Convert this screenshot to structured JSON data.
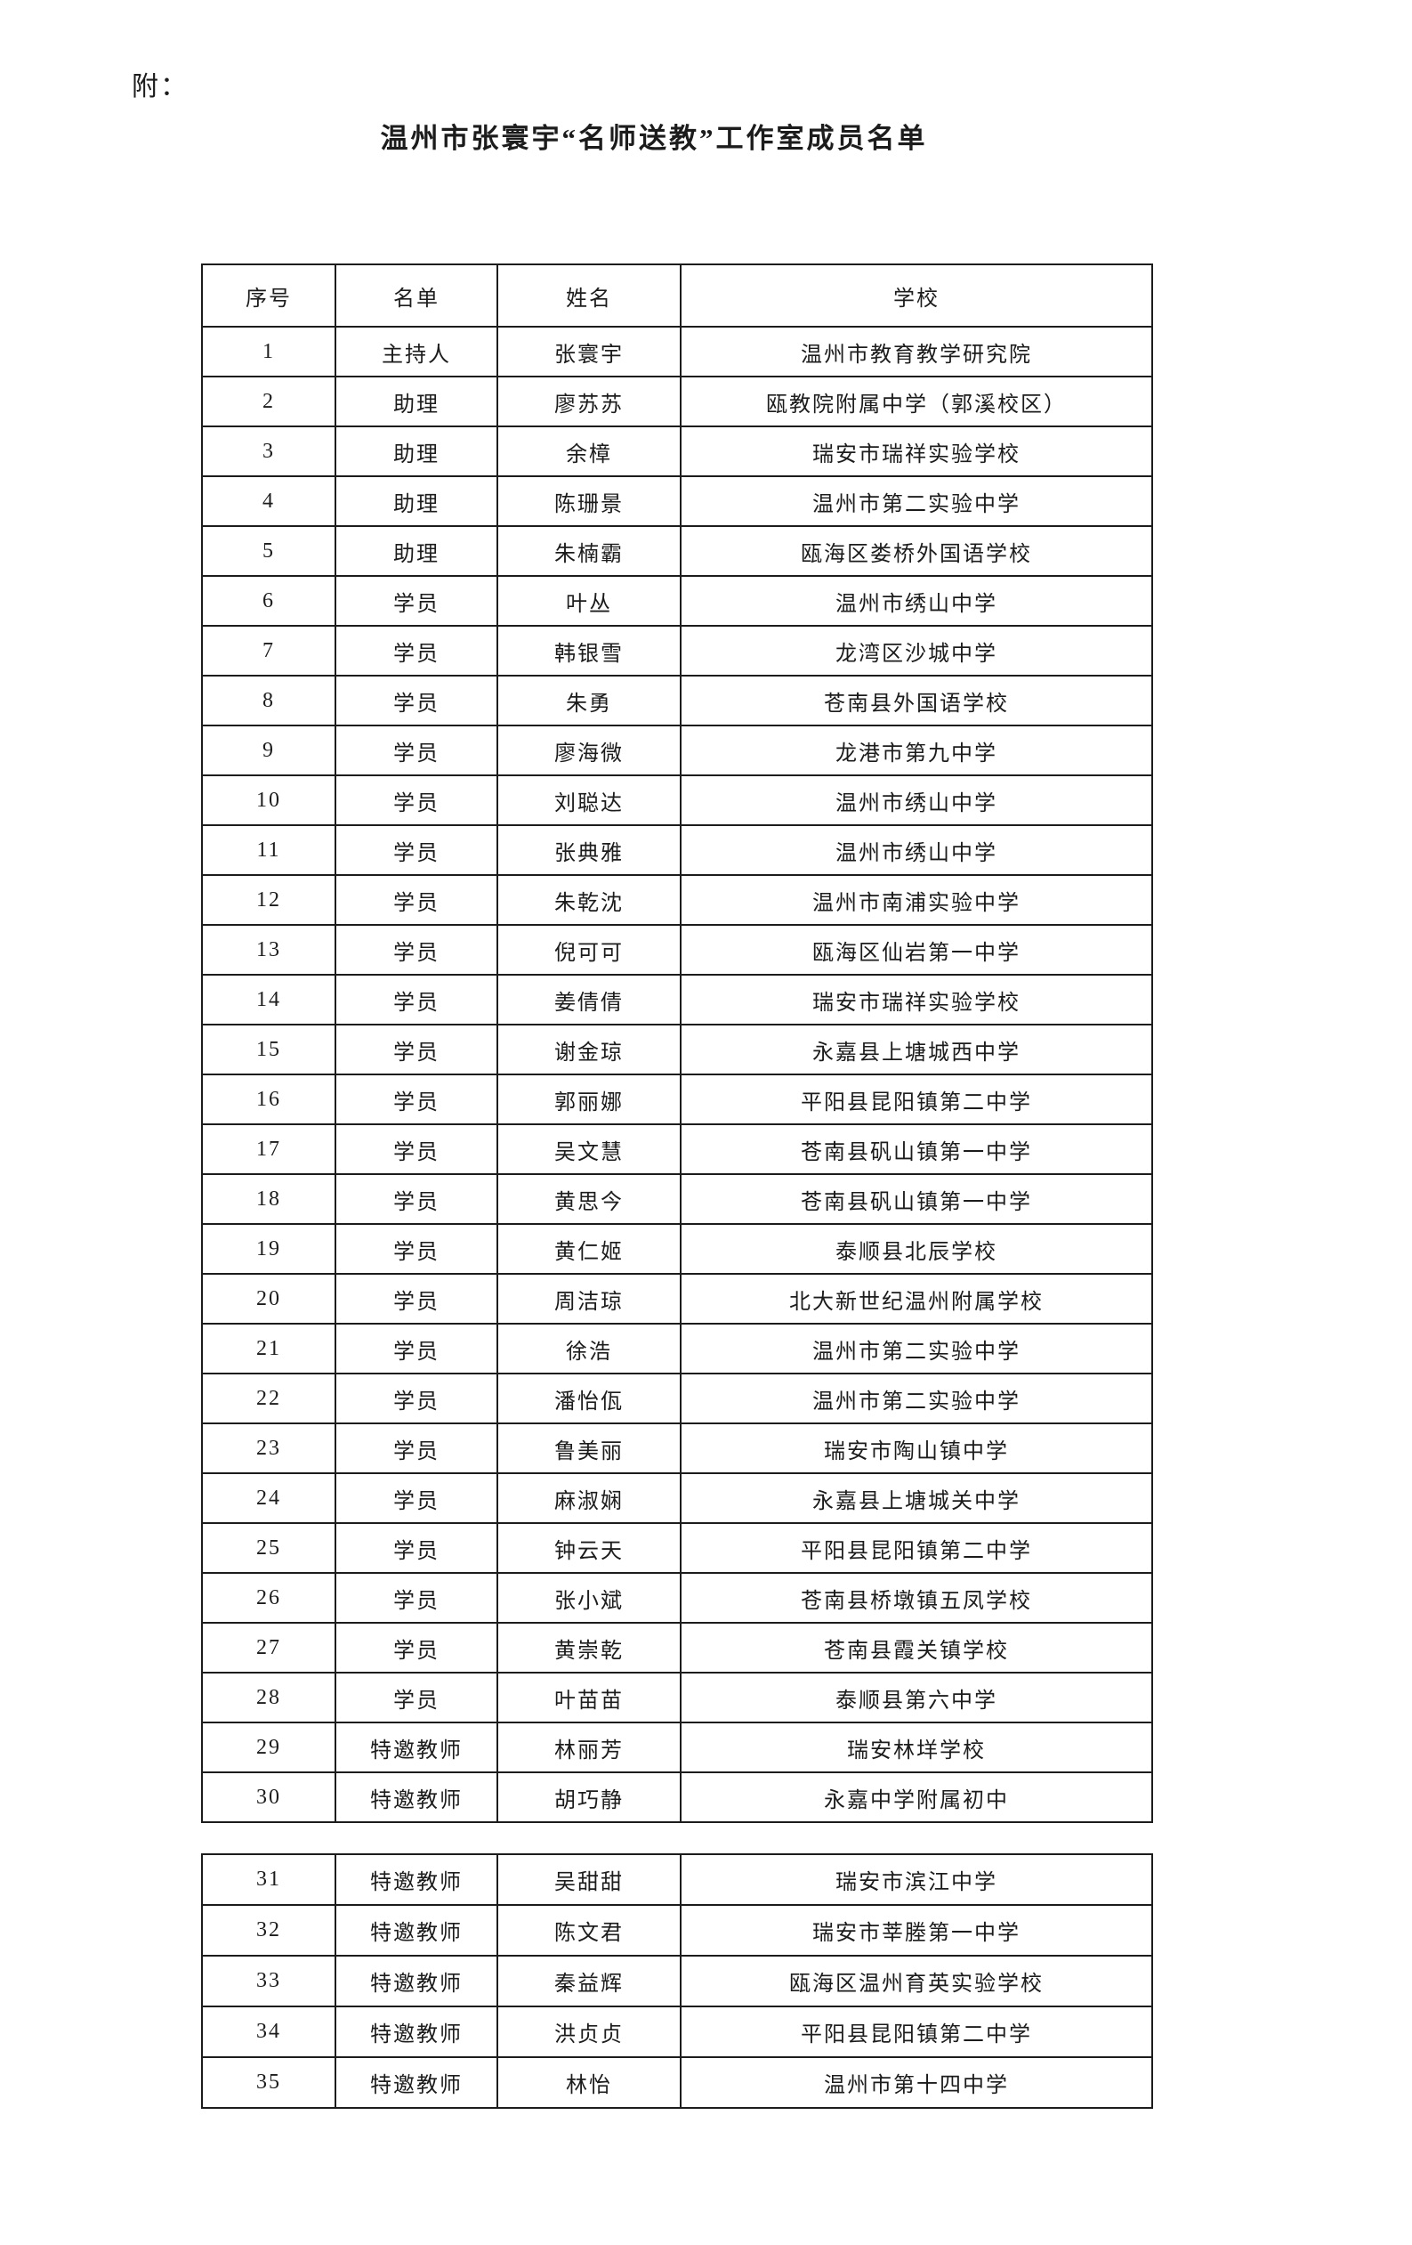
{
  "page": {
    "attachment_label": "附：",
    "title": "温州市张寰宇“名师送教”工作室成员名单"
  },
  "colors": {
    "background": "#ffffff",
    "border": "#1c1c1c",
    "text": "#1c1c1c"
  },
  "table": {
    "headers": [
      "序号",
      "名单",
      "姓名",
      "学校"
    ],
    "column_keys": [
      "index",
      "role",
      "name",
      "school"
    ],
    "sections": [
      {
        "has_header": true,
        "rows": [
          [
            "1",
            "主持人",
            "张寰宇",
            "温州市教育教学研究院"
          ],
          [
            "2",
            "助理",
            "廖苏苏",
            "瓯教院附属中学（郭溪校区）"
          ],
          [
            "3",
            "助理",
            "余樟",
            "瑞安市瑞祥实验学校"
          ],
          [
            "4",
            "助理",
            "陈珊景",
            "温州市第二实验中学"
          ],
          [
            "5",
            "助理",
            "朱楠霸",
            "瓯海区娄桥外国语学校"
          ],
          [
            "6",
            "学员",
            "叶丛",
            "温州市绣山中学"
          ],
          [
            "7",
            "学员",
            "韩银雪",
            "龙湾区沙城中学"
          ],
          [
            "8",
            "学员",
            "朱勇",
            "苍南县外国语学校"
          ],
          [
            "9",
            "学员",
            "廖海微",
            "龙港市第九中学"
          ],
          [
            "10",
            "学员",
            "刘聪达",
            "温州市绣山中学"
          ],
          [
            "11",
            "学员",
            "张典雅",
            "温州市绣山中学"
          ],
          [
            "12",
            "学员",
            "朱乾沈",
            "温州市南浦实验中学"
          ],
          [
            "13",
            "学员",
            "倪可可",
            "瓯海区仙岩第一中学"
          ],
          [
            "14",
            "学员",
            "姜倩倩",
            "瑞安市瑞祥实验学校"
          ],
          [
            "15",
            "学员",
            "谢金琼",
            "永嘉县上塘城西中学"
          ],
          [
            "16",
            "学员",
            "郭丽娜",
            "平阳县昆阳镇第二中学"
          ],
          [
            "17",
            "学员",
            "吴文慧",
            "苍南县矾山镇第一中学"
          ],
          [
            "18",
            "学员",
            "黄思今",
            "苍南县矾山镇第一中学"
          ],
          [
            "19",
            "学员",
            "黄仁姬",
            "泰顺县北辰学校"
          ],
          [
            "20",
            "学员",
            "周洁琼",
            "北大新世纪温州附属学校"
          ],
          [
            "21",
            "学员",
            "徐浩",
            "温州市第二实验中学"
          ],
          [
            "22",
            "学员",
            "潘怡佤",
            "温州市第二实验中学"
          ],
          [
            "23",
            "学员",
            "鲁美丽",
            "瑞安市陶山镇中学"
          ],
          [
            "24",
            "学员",
            "麻淑娴",
            "永嘉县上塘城关中学"
          ],
          [
            "25",
            "学员",
            "钟云天",
            "平阳县昆阳镇第二中学"
          ],
          [
            "26",
            "学员",
            "张小斌",
            "苍南县桥墩镇五凤学校"
          ],
          [
            "27",
            "学员",
            "黄崇乾",
            "苍南县霞关镇学校"
          ],
          [
            "28",
            "学员",
            "叶苗苗",
            "泰顺县第六中学"
          ],
          [
            "29",
            "特邀教师",
            "林丽芳",
            "瑞安林垟学校"
          ],
          [
            "30",
            "特邀教师",
            "胡巧静",
            "永嘉中学附属初中"
          ]
        ]
      },
      {
        "has_header": false,
        "rows": [
          [
            "31",
            "特邀教师",
            "吴甜甜",
            "瑞安市滨江中学"
          ],
          [
            "32",
            "特邀教师",
            "陈文君",
            "瑞安市莘塍第一中学"
          ],
          [
            "33",
            "特邀教师",
            "秦益辉",
            "瓯海区温州育英实验学校"
          ],
          [
            "34",
            "特邀教师",
            "洪贞贞",
            "平阳县昆阳镇第二中学"
          ],
          [
            "35",
            "特邀教师",
            "林怡",
            "温州市第十四中学"
          ]
        ]
      }
    ]
  }
}
